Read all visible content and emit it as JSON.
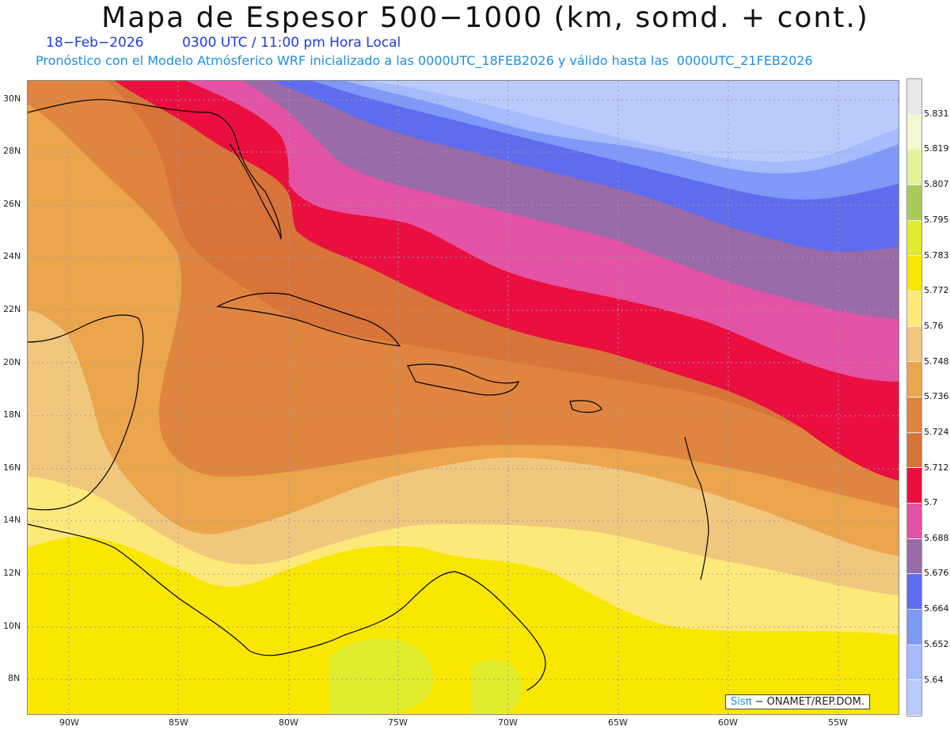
{
  "title": "Mapa de Espesor 500−1000 (km, somd. + cont.)",
  "date_line": "18−Feb−2026         0300 UTC / 11:00 pm Hora Local",
  "forecast_line": "Pronóstico con el Modelo Atmósferico WRF inicializado a las 0000UTC_18FEB2026 y válido hasta las  0000UTC_21FEB2026",
  "lat_labels": [
    "30N",
    "28N",
    "26N",
    "24N",
    "22N",
    "20N",
    "18N",
    "16N",
    "14N",
    "12N",
    "10N",
    "8N"
  ],
  "lon_labels": [
    "90W",
    "85W",
    "80W",
    "75W",
    "70W",
    "65W",
    "60W",
    "55W"
  ],
  "colorbar": {
    "labels": [
      "5.831",
      "5.819",
      "5.807",
      "5.795",
      "5.783",
      "5.772",
      "5.76",
      "5.748",
      "5.736",
      "5.724",
      "5.712",
      "5.7",
      "5.688",
      "5.676",
      "5.664",
      "5.652",
      "5.64"
    ],
    "colors": [
      "#e8e8e8",
      "#f4f8d0",
      "#e4f39a",
      "#a8cc5c",
      "#e0ec2c",
      "#f9e700",
      "#fde97a",
      "#f1c77e",
      "#eba54c",
      "#e0853f",
      "#d87439",
      "#ea0f3f",
      "#e352a4",
      "#9b6aa8",
      "#5f6cee",
      "#7f99f8",
      "#a6bbfc",
      "#b9cafc"
    ]
  },
  "credit": {
    "brand": "Sisπ",
    "text": " − ONAMET/REP.DOM."
  }
}
